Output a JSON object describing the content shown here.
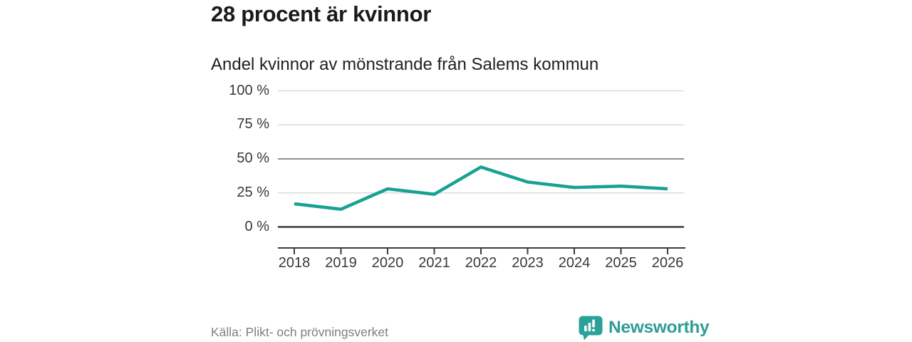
{
  "title": "28 procent är kvinnor",
  "subtitle": "Andel kvinnor av mönstrande från Salems kommun",
  "footer": {
    "source": "Källa: Plikt- och prövningsverket",
    "brand": "Newsworthy",
    "brand_color": "#2E9D95",
    "logo_icon": "bar-chart-speech-bubble",
    "logo_color": "#2AA299"
  },
  "chart_data": {
    "type": "line",
    "title": "28 procent är kvinnor",
    "subtitle": "Andel kvinnor av mönstrande från Salems kommun",
    "x": [
      2018,
      2019,
      2020,
      2021,
      2022,
      2023,
      2024,
      2025,
      2026
    ],
    "series": [
      {
        "name": "Andel kvinnor av mönstrande",
        "values": [
          17,
          13,
          28,
          24,
          44,
          33,
          29,
          30,
          28
        ]
      }
    ],
    "unit": "%",
    "ylim": [
      0,
      100
    ],
    "yticks": [
      0,
      25,
      50,
      75,
      100
    ],
    "ytick_labels": [
      "0 %",
      "25 %",
      "50 %",
      "75 %",
      "100 %"
    ],
    "grid": "horizontal",
    "legend": "none",
    "line_color": "#17A294",
    "grid_color_light": "#DBDBDB",
    "grid_color_mid": "#8F8F8F",
    "axis_color": "#3D3D3D"
  }
}
